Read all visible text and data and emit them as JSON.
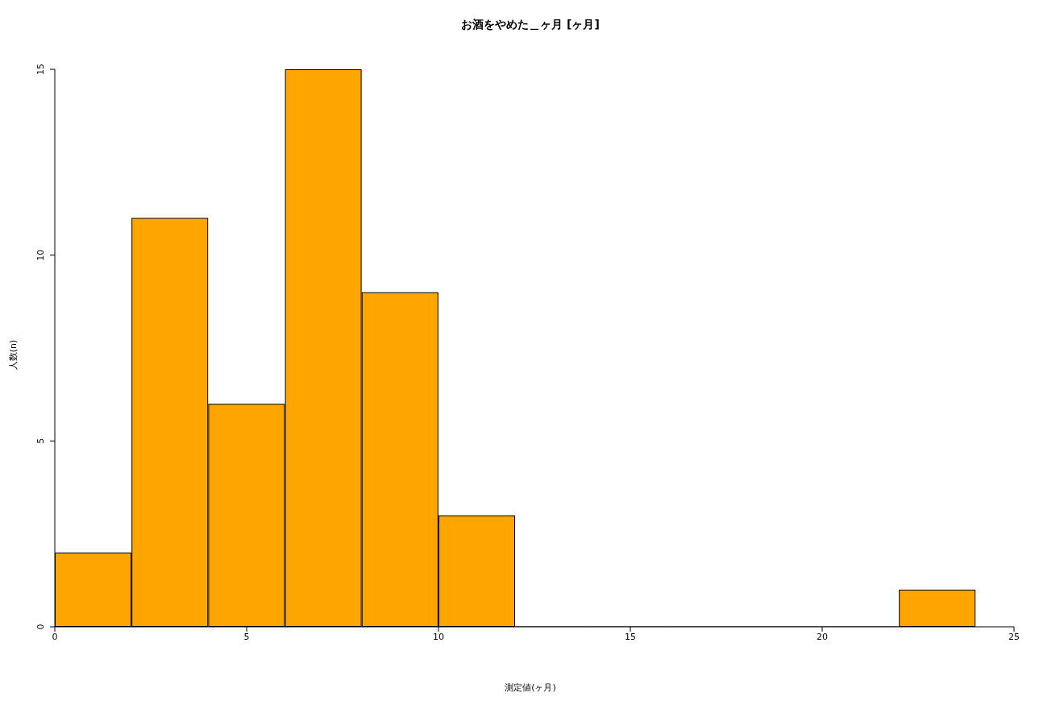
{
  "chart_data": {
    "type": "histogram",
    "title": "お酒をやめた＿ヶ月 [ヶ月]",
    "xlabel": "測定値(ヶ月)",
    "ylabel": "人数(n)",
    "bins": [
      0,
      2,
      4,
      6,
      8,
      10,
      12,
      14,
      16,
      18,
      20,
      22,
      24
    ],
    "values": [
      2,
      11,
      6,
      15,
      9,
      3,
      0,
      0,
      0,
      0,
      0,
      1
    ],
    "color": "#ffa500",
    "xlim": [
      0,
      25
    ],
    "xticks": [
      0,
      5,
      10,
      15,
      20,
      25
    ],
    "ylim": [
      0,
      15
    ],
    "yticks": [
      0,
      5,
      10,
      15
    ],
    "grid": false,
    "legend": false
  }
}
